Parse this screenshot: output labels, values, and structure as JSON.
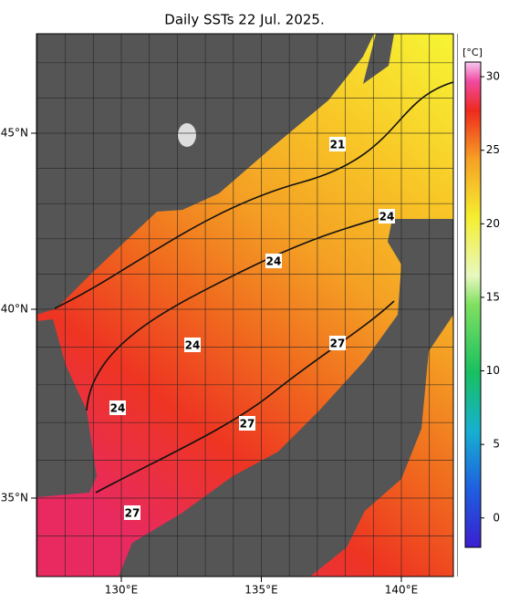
{
  "title": "Daily SSTs 22 Jul. 2025.",
  "lat_ticks": [
    {
      "value": 45,
      "label": "45°N"
    },
    {
      "value": 40,
      "label": "40°N"
    },
    {
      "value": 35,
      "label": "35°N"
    }
  ],
  "lon_ticks": [
    {
      "value": 130,
      "label": "130°E"
    },
    {
      "value": 135,
      "label": "135°E"
    },
    {
      "value": 140,
      "label": "140°E"
    }
  ],
  "colorbar": {
    "unit": "[°C]",
    "range": [
      -2,
      31
    ],
    "ticks": [
      0,
      5,
      10,
      15,
      20,
      25,
      30
    ]
  },
  "contour_labels": [
    21,
    24,
    24,
    24,
    24,
    27,
    27,
    27
  ]
}
